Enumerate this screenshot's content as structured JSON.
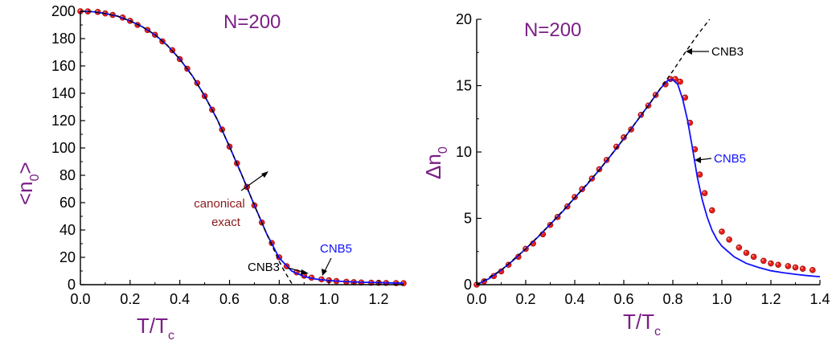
{
  "chart_data": [
    {
      "type": "line",
      "panel": "left",
      "label": "N=200",
      "xlabel_main": "T/T",
      "xlabel_sub": "c",
      "ylabel_main": "<n",
      "ylabel_sub": "0",
      "ylabel_close": ">",
      "xlim": [
        0,
        1.3
      ],
      "ylim": [
        0,
        200
      ],
      "x_ticks": [
        "0.0",
        "0.2",
        "0.4",
        "0.6",
        "0.8",
        "1.0",
        "1.2"
      ],
      "y_ticks": [
        "0",
        "20",
        "40",
        "60",
        "80",
        "100",
        "120",
        "140",
        "160",
        "180",
        "200"
      ],
      "colors": {
        "cnb5": "#1010ff",
        "cnb3": "#000000",
        "exact_fill": "#e8201a",
        "exact_edge": "#a01010",
        "annotation_exact": "#8b1a1a"
      },
      "annotations": [
        {
          "text_lines": [
            "canonical",
            "exact"
          ],
          "color": "#8b1a1a"
        },
        {
          "text": "CNB5",
          "color": "#1010ff"
        },
        {
          "text": "CNB3",
          "color": "#000000"
        }
      ],
      "series": [
        {
          "name": "CNB5",
          "style": "solid",
          "x": [
            0,
            0.05,
            0.1,
            0.15,
            0.2,
            0.25,
            0.3,
            0.35,
            0.4,
            0.45,
            0.5,
            0.55,
            0.6,
            0.65,
            0.7,
            0.75,
            0.8,
            0.85,
            0.9,
            0.95,
            1.0,
            1.05,
            1.1,
            1.15,
            1.2,
            1.25,
            1.3
          ],
          "y": [
            200,
            199.7,
            198.4,
            196.4,
            193,
            188.6,
            182.8,
            175,
            165,
            152.8,
            138,
            121,
            101,
            80,
            58,
            37,
            19.5,
            10,
            6,
            4,
            3,
            2.4,
            2,
            1.7,
            1.5,
            1.3,
            1.2
          ]
        },
        {
          "name": "CNB3",
          "style": "dashed",
          "x": [
            0,
            0.05,
            0.1,
            0.15,
            0.2,
            0.25,
            0.3,
            0.35,
            0.4,
            0.45,
            0.5,
            0.55,
            0.6,
            0.65,
            0.7,
            0.75,
            0.8,
            0.82,
            0.84,
            0.86,
            0.88
          ],
          "y": [
            200,
            199.7,
            198.4,
            196.4,
            193,
            188.6,
            182.8,
            175,
            165,
            152.8,
            138,
            121,
            101,
            80,
            58,
            37,
            17,
            10,
            4,
            -2,
            -8
          ]
        },
        {
          "name": "canonical exact",
          "style": "markers",
          "x": [
            0,
            0.03,
            0.07,
            0.1,
            0.13,
            0.17,
            0.2,
            0.23,
            0.27,
            0.3,
            0.33,
            0.37,
            0.4,
            0.43,
            0.47,
            0.5,
            0.53,
            0.57,
            0.6,
            0.63,
            0.67,
            0.7,
            0.73,
            0.77,
            0.8,
            0.83,
            0.87,
            0.9,
            0.93,
            0.97,
            1.0,
            1.03,
            1.07,
            1.1,
            1.13,
            1.17,
            1.2,
            1.23,
            1.27,
            1.3
          ],
          "y": [
            200,
            199.9,
            199.5,
            198.4,
            197.3,
            195.4,
            193,
            190,
            186.3,
            182.8,
            178,
            171.5,
            165,
            158,
            147.5,
            138,
            128,
            113.5,
            101,
            88.8,
            71.5,
            58,
            45.5,
            30.5,
            20,
            13.5,
            9,
            6.6,
            5.1,
            3.9,
            3.2,
            2.6,
            2.1,
            1.8,
            1.6,
            1.45,
            1.35,
            1.25,
            1.15,
            1.1
          ]
        }
      ]
    },
    {
      "type": "line",
      "panel": "right",
      "label": "N=200",
      "xlabel_main": "T/T",
      "xlabel_sub": "c",
      "ylabel_main": "Δn",
      "ylabel_sub": "0",
      "xlim": [
        0,
        1.4
      ],
      "ylim": [
        0,
        20
      ],
      "x_ticks": [
        "0.0",
        "0.2",
        "0.4",
        "0.6",
        "0.8",
        "1.0",
        "1.2",
        "1.4"
      ],
      "y_ticks": [
        "0",
        "5",
        "10",
        "15",
        "20"
      ],
      "colors": {
        "cnb5": "#1010ff",
        "cnb3": "#000000",
        "exact_fill": "#e8201a",
        "exact_edge": "#a01010"
      },
      "annotations": [
        {
          "text": "CNB3",
          "color": "#000000"
        },
        {
          "text": "CNB5",
          "color": "#1010ff"
        }
      ],
      "series": [
        {
          "name": "CNB5",
          "style": "solid",
          "x": [
            0,
            0.05,
            0.1,
            0.15,
            0.2,
            0.25,
            0.3,
            0.35,
            0.4,
            0.45,
            0.5,
            0.55,
            0.6,
            0.65,
            0.7,
            0.75,
            0.78,
            0.8,
            0.82,
            0.84,
            0.86,
            0.88,
            0.9,
            0.92,
            0.94,
            0.96,
            0.98,
            1.0,
            1.05,
            1.1,
            1.15,
            1.2,
            1.25,
            1.3,
            1.35,
            1.4
          ],
          "y": [
            0,
            0.45,
            1.1,
            1.85,
            2.7,
            3.6,
            4.55,
            5.5,
            6.55,
            7.55,
            8.65,
            9.8,
            11,
            12.25,
            13.5,
            14.8,
            15.4,
            15.45,
            15.1,
            14.0,
            12.4,
            10.3,
            8.1,
            6.4,
            5.1,
            4.1,
            3.4,
            2.9,
            2.1,
            1.6,
            1.3,
            1.05,
            0.9,
            0.78,
            0.68,
            0.6
          ]
        },
        {
          "name": "CNB3",
          "style": "dashed",
          "x": [
            0,
            0.1,
            0.2,
            0.3,
            0.4,
            0.5,
            0.6,
            0.7,
            0.8,
            0.85,
            0.9,
            0.95
          ],
          "y": [
            0,
            1.1,
            2.7,
            4.55,
            6.55,
            8.65,
            11,
            13.5,
            16.1,
            17.5,
            18.8,
            20
          ]
        },
        {
          "name": "canonical exact",
          "style": "markers",
          "x": [
            0,
            0.03,
            0.07,
            0.1,
            0.13,
            0.17,
            0.2,
            0.23,
            0.27,
            0.3,
            0.33,
            0.37,
            0.4,
            0.43,
            0.47,
            0.5,
            0.53,
            0.57,
            0.6,
            0.63,
            0.67,
            0.7,
            0.73,
            0.77,
            0.79,
            0.81,
            0.83,
            0.85,
            0.87,
            0.89,
            0.91,
            0.93,
            0.96,
            1.0,
            1.03,
            1.07,
            1.1,
            1.13,
            1.17,
            1.2,
            1.23,
            1.27,
            1.3,
            1.33,
            1.37
          ],
          "y": [
            0,
            0.25,
            0.65,
            1.0,
            1.5,
            2.1,
            2.7,
            3.1,
            3.8,
            4.5,
            5.1,
            5.9,
            6.6,
            7.2,
            8.0,
            8.7,
            9.4,
            10.4,
            11.1,
            11.7,
            12.8,
            13.5,
            14.3,
            15.1,
            15.5,
            15.5,
            15.3,
            14.1,
            12.2,
            10.2,
            8.3,
            6.9,
            5.6,
            4.0,
            3.4,
            2.8,
            2.4,
            2.1,
            1.8,
            1.6,
            1.5,
            1.4,
            1.3,
            1.2,
            1.1
          ]
        }
      ]
    }
  ]
}
